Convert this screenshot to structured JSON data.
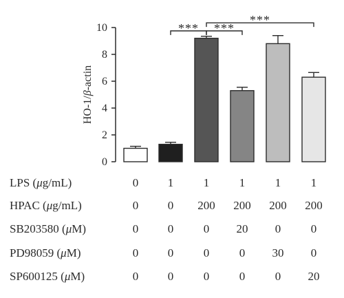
{
  "chart_data": {
    "type": "bar",
    "ylabel": "HO-1/β-actin",
    "ylabel_parts": [
      "HO-1/",
      "β",
      "-actin"
    ],
    "ylim": [
      0,
      10
    ],
    "yticks": [
      "0",
      "2",
      "4",
      "6",
      "8",
      "10"
    ],
    "grid": false,
    "bars": [
      {
        "value": 1.0,
        "error": 0.15,
        "color": "#ffffff"
      },
      {
        "value": 1.3,
        "error": 0.15,
        "color": "#1f1f1f"
      },
      {
        "value": 9.2,
        "error": 0.15,
        "color": "#555555"
      },
      {
        "value": 5.3,
        "error": 0.25,
        "color": "#858585"
      },
      {
        "value": 8.8,
        "error": 0.6,
        "color": "#bdbdbd"
      },
      {
        "value": 6.3,
        "error": 0.35,
        "color": "#e6e6e6"
      }
    ],
    "significance": [
      {
        "from": 1,
        "to": 2,
        "label": "***",
        "level": 9.75
      },
      {
        "from": 2,
        "to": 3,
        "label": "***",
        "level": 9.75
      },
      {
        "from": 2,
        "to": 5,
        "label": "***",
        "level": 10.35
      }
    ],
    "treatment_table": [
      {
        "name": "LPS",
        "unit_open": " (",
        "unit_greek": "μ",
        "unit_rest": "g/mL)",
        "values": [
          "0",
          "1",
          "1",
          "1",
          "1",
          "1"
        ]
      },
      {
        "name": "HPAC",
        "unit_open": " (",
        "unit_greek": "μ",
        "unit_rest": "g/mL)",
        "values": [
          "0",
          "0",
          "200",
          "200",
          "200",
          "200"
        ]
      },
      {
        "name": "SB203580",
        "unit_open": " (",
        "unit_greek": "μ",
        "unit_rest": "M)",
        "values": [
          "0",
          "0",
          "0",
          "20",
          "0",
          "0"
        ]
      },
      {
        "name": "PD98059",
        "unit_open": " (",
        "unit_greek": "μ",
        "unit_rest": "M)",
        "values": [
          "0",
          "0",
          "0",
          "0",
          "30",
          "0"
        ]
      },
      {
        "name": "SP600125",
        "unit_open": " (",
        "unit_greek": "μ",
        "unit_rest": "M)",
        "values": [
          "0",
          "0",
          "0",
          "0",
          "0",
          "20"
        ]
      }
    ]
  }
}
